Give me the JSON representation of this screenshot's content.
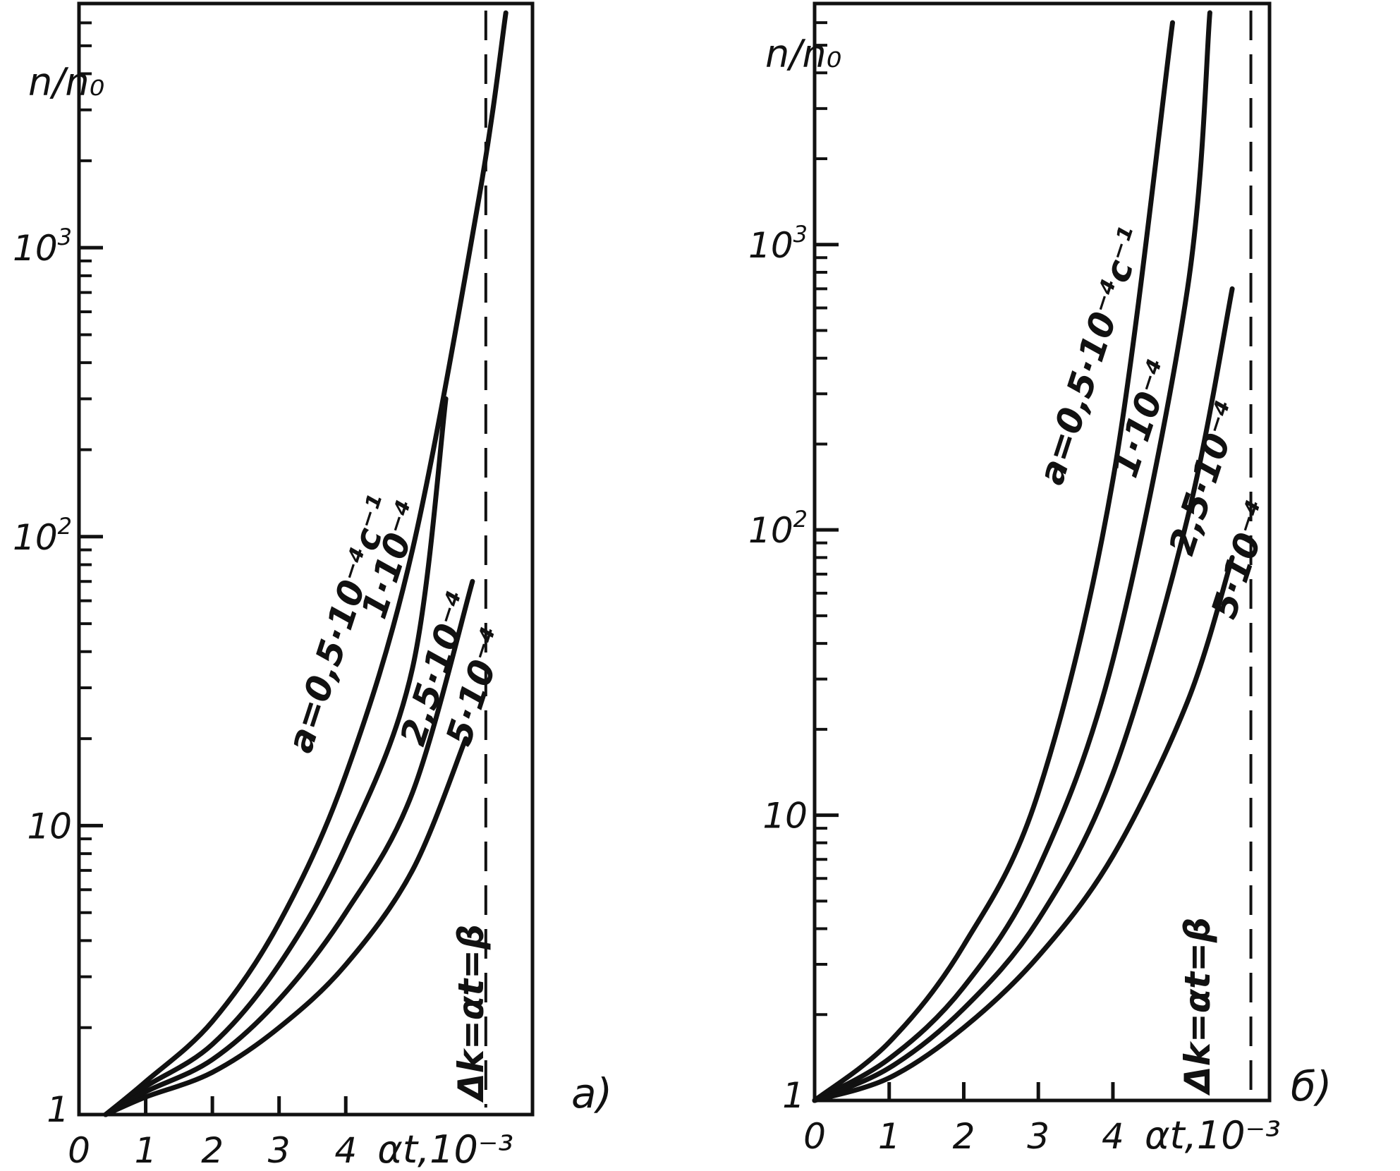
{
  "chart_data": [
    {
      "type": "line",
      "panel_label": "a)",
      "ylabel": "n/n₀",
      "xlabel": "αt,10⁻³",
      "y_scale": "log",
      "xlim": [
        0,
        6.8
      ],
      "ylim": [
        1,
        7000
      ],
      "x_ticks": [
        "0",
        "1",
        "2",
        "3",
        "4"
      ],
      "x_tick_values": [
        0,
        1,
        2,
        3,
        4
      ],
      "y_ticks": [
        {
          "value": 10,
          "base": "10",
          "exp": ""
        },
        {
          "value": 100,
          "base": "10",
          "exp": "2"
        },
        {
          "value": 1000,
          "base": "10",
          "exp": "3"
        }
      ],
      "y_origin_label": "1",
      "series": [
        {
          "name": "a=0,5·10⁻⁴c⁻¹",
          "x": [
            0.4,
            1.0,
            2.0,
            3.0,
            4.0,
            5.0,
            6.0,
            6.4
          ],
          "y": [
            1,
            1.3,
            2.1,
            4.6,
            15,
            90,
            1500,
            6500
          ]
        },
        {
          "name": "1·10⁻⁴",
          "x": [
            0.4,
            1.0,
            2.0,
            3.0,
            4.0,
            5.0,
            5.5
          ],
          "y": [
            1,
            1.25,
            1.75,
            3.3,
            8.5,
            35,
            300
          ]
        },
        {
          "name": "2,5·10⁻⁴",
          "x": [
            0.4,
            1.0,
            2.0,
            3.0,
            4.0,
            5.0,
            5.9
          ],
          "y": [
            1,
            1.2,
            1.55,
            2.5,
            5.0,
            13,
            70
          ]
        },
        {
          "name": "5·10⁻⁴",
          "x": [
            0.4,
            1.0,
            2.0,
            3.0,
            4.0,
            5.0,
            5.8
          ],
          "y": [
            1,
            1.15,
            1.4,
            2.0,
            3.3,
            7.0,
            20
          ]
        }
      ],
      "reference_line": {
        "label": "Δk=αt=β",
        "x": 6.1,
        "style": "dashed"
      }
    },
    {
      "type": "line",
      "panel_label": "б)",
      "ylabel": "n/n₀",
      "xlabel": "αt,10⁻³",
      "y_scale": "log",
      "xlim": [
        0,
        6.1
      ],
      "ylim": [
        1,
        7000
      ],
      "x_ticks": [
        "0",
        "1",
        "2",
        "3",
        "4"
      ],
      "x_tick_values": [
        0,
        1,
        2,
        3,
        4
      ],
      "y_ticks": [
        {
          "value": 10,
          "base": "10",
          "exp": ""
        },
        {
          "value": 100,
          "base": "10",
          "exp": "2"
        },
        {
          "value": 1000,
          "base": "10",
          "exp": "3"
        }
      ],
      "y_origin_label": "1",
      "series": [
        {
          "name": "a=0,5·10⁻⁴c⁻¹",
          "x": [
            0.0,
            1.0,
            2.0,
            3.0,
            4.0,
            4.8
          ],
          "y": [
            1,
            1.6,
            3.5,
            12,
            150,
            6000
          ]
        },
        {
          "name": "1·10⁻⁴",
          "x": [
            0.0,
            1.0,
            2.0,
            3.0,
            4.0,
            5.0,
            5.3
          ],
          "y": [
            1,
            1.4,
            2.5,
            6.5,
            35,
            700,
            6500
          ]
        },
        {
          "name": "2,5·10⁻⁴",
          "x": [
            0.0,
            1.0,
            2.0,
            3.0,
            4.0,
            5.0,
            5.6
          ],
          "y": [
            1,
            1.3,
            2.1,
            4.3,
            14,
            110,
            700
          ]
        },
        {
          "name": "5·10⁻⁴",
          "x": [
            0.0,
            1.0,
            2.0,
            3.0,
            4.0,
            5.0,
            5.6
          ],
          "y": [
            1,
            1.2,
            1.8,
            3.2,
            7.2,
            25,
            80
          ]
        }
      ],
      "reference_line": {
        "label": "Δk=αt=β",
        "x": 5.85,
        "style": "dashed"
      }
    }
  ]
}
